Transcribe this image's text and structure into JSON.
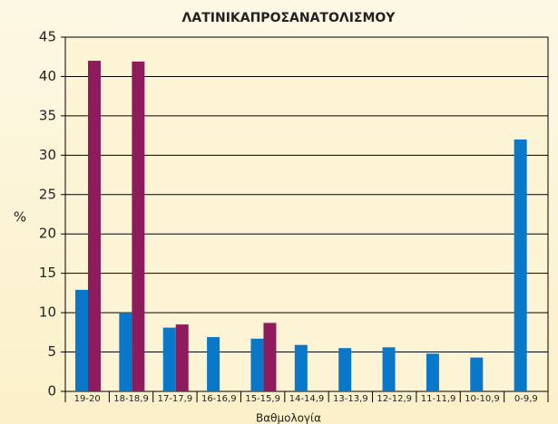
{
  "chart_data": {
    "type": "bar",
    "title": "ΛΑΤΙΝΙΚΑΠΡΟΣΑΝΑΤΟΛΙΣΜΟΥ",
    "x_label": "Βαθμολογία",
    "y_label": "%",
    "categories": [
      "19-20",
      "18-18,9",
      "17-17,9",
      "16-16,9",
      "15-15,9",
      "14-14,9",
      "13-13,9",
      "12-12,9",
      "11-11,9",
      "10-10,9",
      "0-9,9"
    ],
    "series": [
      {
        "color": "#0a78c8",
        "values": [
          12.9,
          9.9,
          8.1,
          6.9,
          6.7,
          5.9,
          5.5,
          5.6,
          4.8,
          4.3,
          32.0
        ]
      },
      {
        "color": "#8e1c5c",
        "values": [
          42.0,
          41.9,
          8.5,
          null,
          8.7,
          null,
          null,
          null,
          null,
          null,
          null
        ]
      }
    ],
    "ylim": [
      0,
      45
    ],
    "yticks": [
      0,
      5,
      10,
      15,
      20,
      25,
      30,
      35,
      40,
      45
    ],
    "grid": true
  }
}
